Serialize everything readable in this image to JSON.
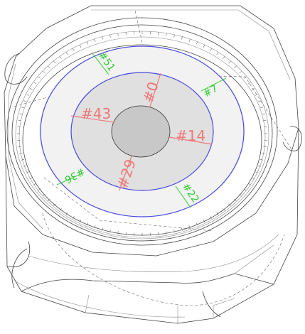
{
  "labels": {
    "inner": [
      {
        "id": "l0",
        "text": "#0"
      },
      {
        "id": "l14",
        "text": "#14"
      },
      {
        "id": "l29",
        "text": "#29"
      },
      {
        "id": "l43",
        "text": "#43"
      }
    ],
    "outer": [
      {
        "id": "l7",
        "text": "#7"
      },
      {
        "id": "l22",
        "text": "#22"
      },
      {
        "id": "l36",
        "text": "#36"
      },
      {
        "id": "l51",
        "text": "#51"
      }
    ]
  },
  "colors": {
    "inner_label": "#f07878",
    "outer_label": "#33cc33",
    "ring": "#4a4adf",
    "outline": "#444444"
  }
}
